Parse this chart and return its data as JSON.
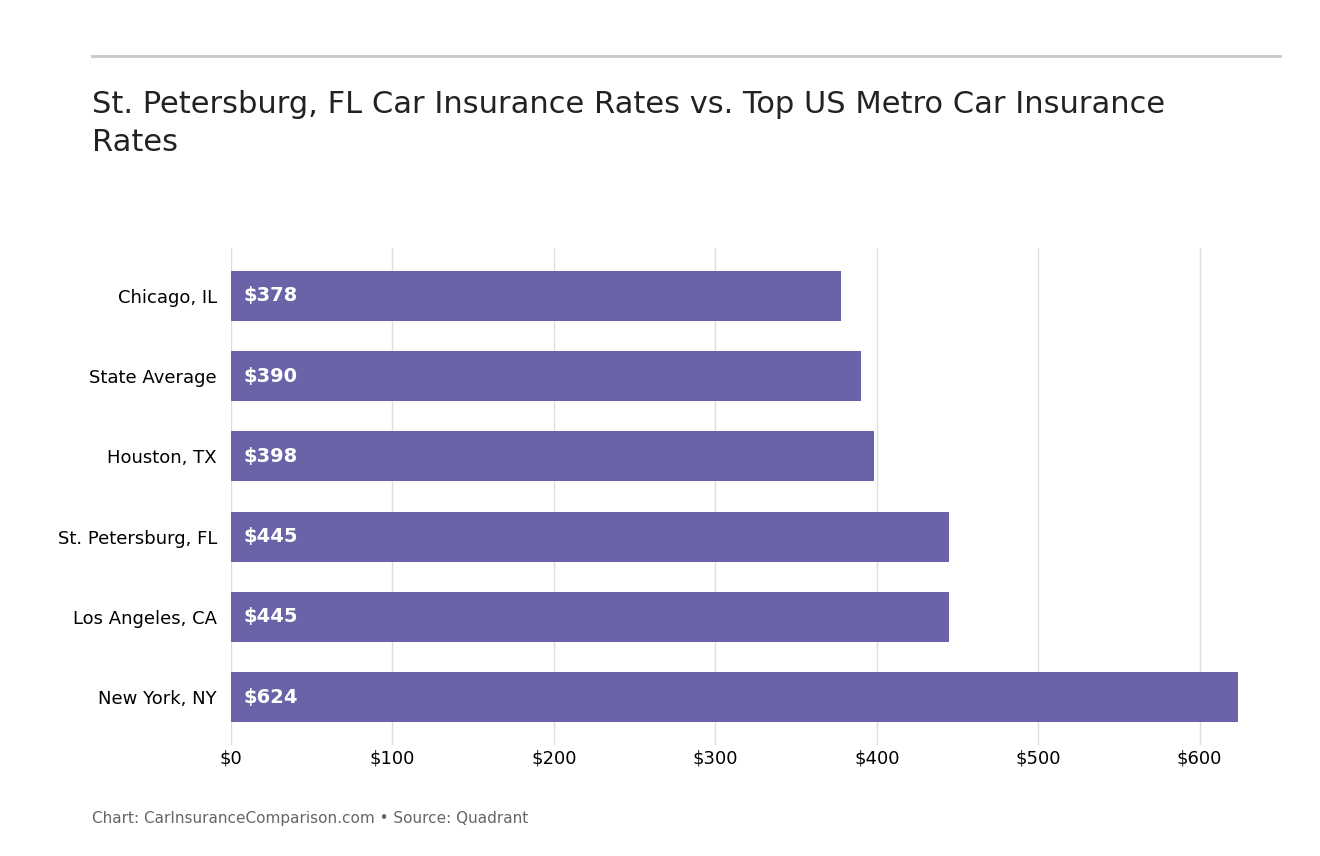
{
  "title": "St. Petersburg, FL Car Insurance Rates vs. Top US Metro Car Insurance\nRates",
  "categories": [
    "Chicago, IL",
    "State Average",
    "Houston, TX",
    "St. Petersburg, FL",
    "Los Angeles, CA",
    "New York, NY"
  ],
  "values": [
    378,
    390,
    398,
    445,
    445,
    624
  ],
  "bar_color": "#6b63a8",
  "label_color": "#ffffff",
  "xlim": [
    0,
    650
  ],
  "xtick_values": [
    0,
    100,
    200,
    300,
    400,
    500,
    600
  ],
  "xtick_labels": [
    "$0",
    "$100",
    "$200",
    "$300",
    "$400",
    "$500",
    "$600"
  ],
  "background_color": "#ffffff",
  "title_fontsize": 22,
  "label_fontsize": 14,
  "tick_fontsize": 13,
  "ytick_fontsize": 13,
  "caption": "Chart: CarInsuranceComparison.com • Source: Quadrant",
  "caption_fontsize": 11,
  "top_line_color": "#c8c8c8",
  "grid_color": "#dddddd"
}
